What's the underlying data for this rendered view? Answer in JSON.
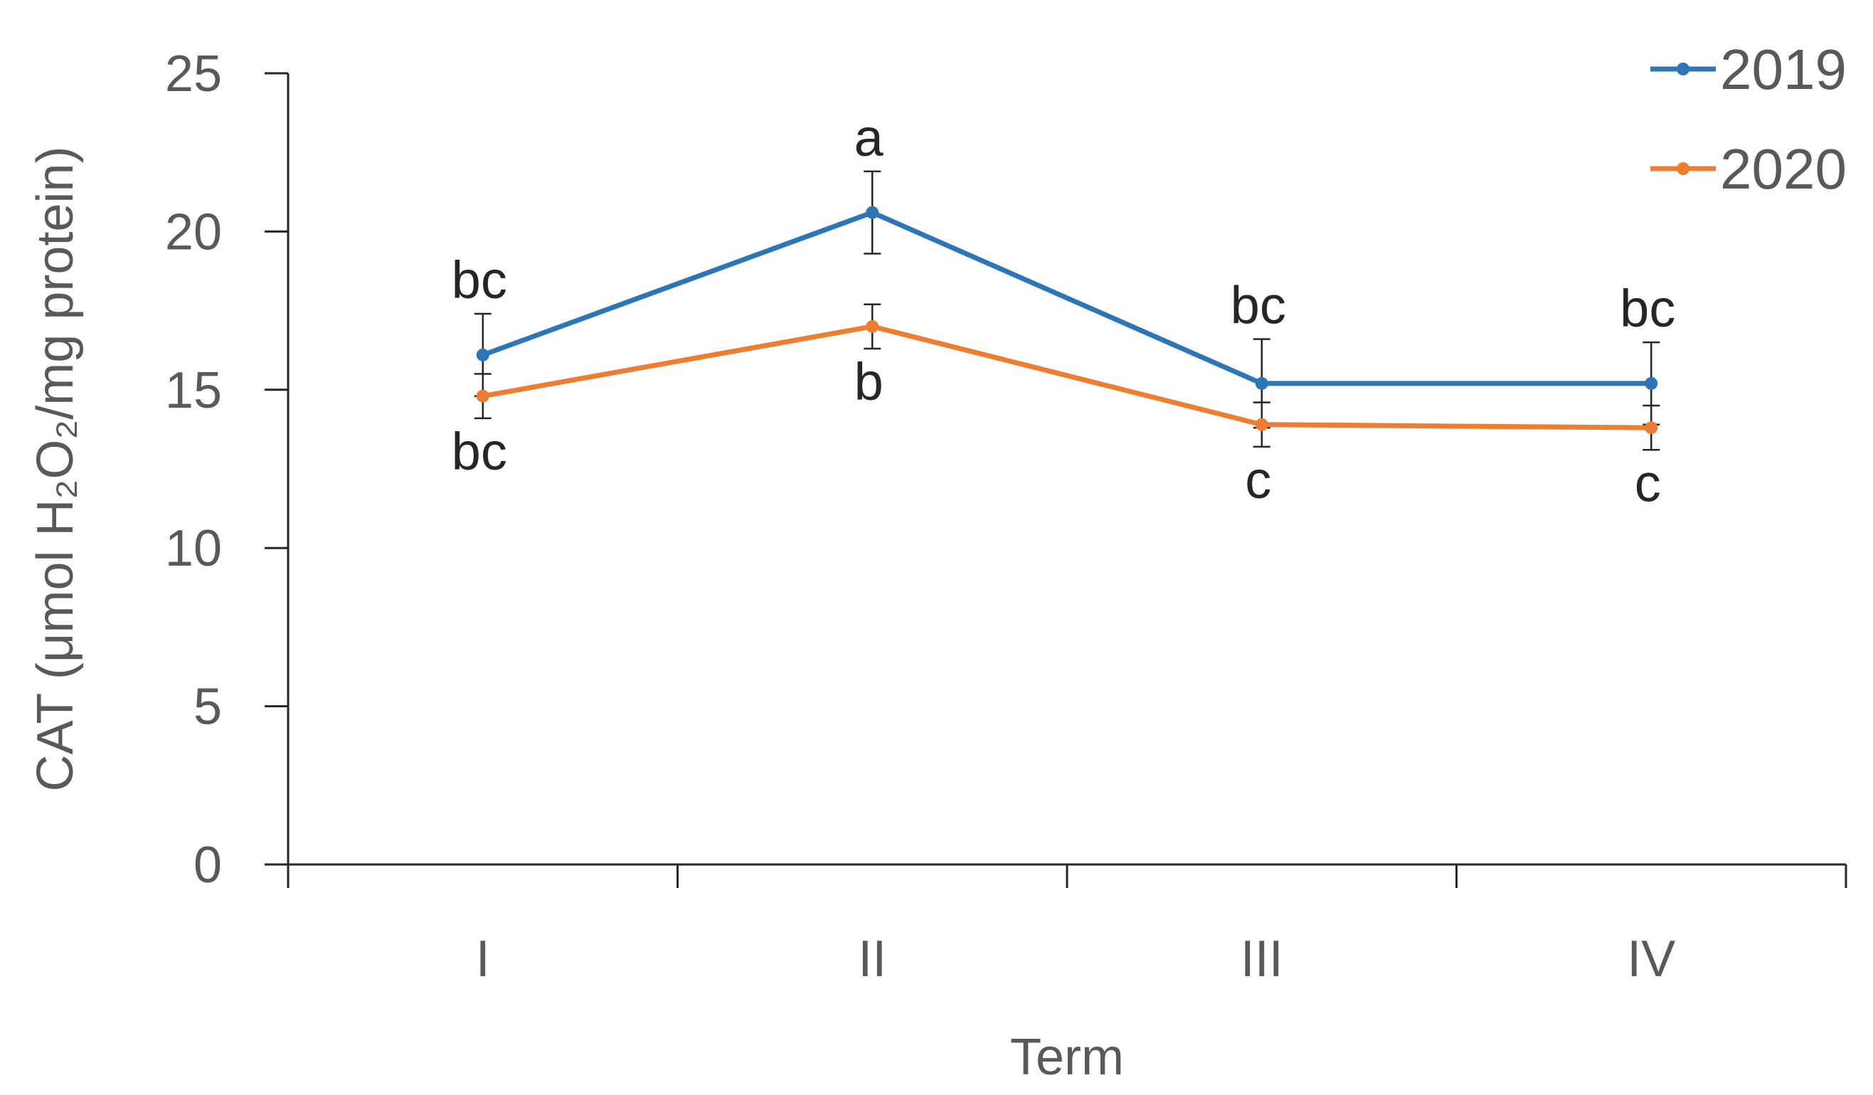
{
  "chart_data": {
    "type": "line",
    "title": "",
    "xlabel": "Term",
    "ylabel": "CAT (μmol H₂O₂/mg protein)",
    "categories": [
      "I",
      "II",
      "III",
      "IV"
    ],
    "ylim": [
      0,
      25
    ],
    "yticks": [
      0,
      5,
      10,
      15,
      20,
      25
    ],
    "grid": false,
    "legend": "top-right",
    "series": [
      {
        "name": "2019",
        "color": "#2E75B6",
        "values": [
          16.1,
          20.6,
          15.2,
          15.2
        ],
        "errors": [
          1.3,
          1.3,
          1.4,
          1.3
        ],
        "labels": [
          "bc",
          "a",
          "bc",
          "bc"
        ],
        "label_side": "above"
      },
      {
        "name": "2020",
        "color": "#ED7D31",
        "values": [
          14.8,
          17.0,
          13.9,
          13.8
        ],
        "errors": [
          0.7,
          0.7,
          0.7,
          0.7
        ],
        "labels": [
          "bc",
          "b",
          "c",
          "c"
        ],
        "label_side": "below"
      }
    ]
  }
}
